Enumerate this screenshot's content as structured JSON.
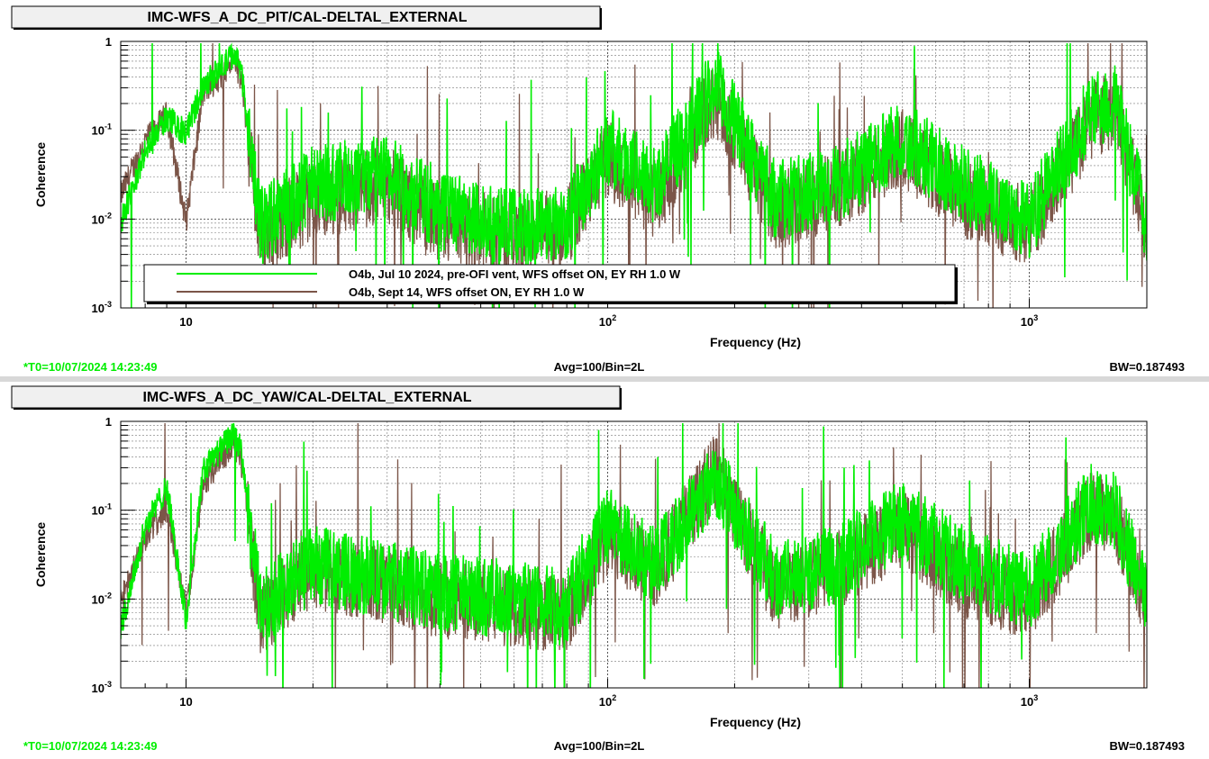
{
  "colors": {
    "series_1": "#00ee00",
    "series_2": "#7b5548",
    "t0_text": "#00ee00",
    "separator": "#d8d8d8"
  },
  "panels": [
    {
      "title": "IMC-WFS_A_DC_PIT/CAL-DELTAL_EXTERNAL",
      "t0": "*T0=10/07/2024 14:23:49",
      "avg": "Avg=100/Bin=2L",
      "bw": "BW=0.187493",
      "show_legend": true
    },
    {
      "title": "IMC-WFS_A_DC_YAW/CAL-DELTAL_EXTERNAL",
      "t0": "*T0=10/07/2024 14:23:49",
      "avg": "Avg=100/Bin=2L",
      "bw": "BW=0.187493",
      "show_legend": false
    }
  ],
  "legend": [
    {
      "label": "O4b, Jul 10 2024, pre-OFI vent, WFS offset ON, EY RH 1.0 W",
      "color": "#00ee00"
    },
    {
      "label": "O4b, Sept 14, WFS offset ON, EY RH 1.0 W",
      "color": "#7b5548"
    }
  ],
  "chart_data": [
    {
      "type": "line",
      "title": "IMC-WFS_A_DC_PIT/CAL-DELTAL_EXTERNAL",
      "xlabel": "Frequency (Hz)",
      "ylabel": "Coherence",
      "xscale": "log",
      "yscale": "log",
      "xlim": [
        7,
        1900
      ],
      "ylim": [
        0.001,
        1
      ],
      "x_ticklabels": [
        "10",
        "10^2",
        "10^3"
      ],
      "y_ticklabels": [
        "10^-3",
        "10^-2",
        "10^-1",
        "1"
      ],
      "grid": true,
      "legend_position": "bottom-left",
      "series": [
        {
          "name": "O4b, Jul 10 2024, pre-OFI vent, WFS offset ON, EY RH 1.0 W",
          "x": [
            7,
            8,
            9,
            10,
            11,
            12,
            13,
            13.5,
            15,
            20,
            30,
            40,
            60,
            80,
            100,
            130,
            180,
            250,
            350,
            500,
            700,
            1000,
            1400,
            1600,
            1900
          ],
          "y": [
            0.01,
            0.06,
            0.15,
            0.1,
            0.35,
            0.5,
            0.8,
            0.5,
            0.01,
            0.03,
            0.04,
            0.015,
            0.01,
            0.012,
            0.08,
            0.03,
            0.4,
            0.02,
            0.03,
            0.1,
            0.03,
            0.012,
            0.2,
            0.25,
            0.011
          ]
        },
        {
          "name": "O4b, Sept 14, WFS offset ON, EY RH 1.0 W",
          "x": [
            7,
            8,
            9,
            10,
            11,
            12,
            13,
            13.5,
            15,
            20,
            30,
            40,
            60,
            80,
            100,
            130,
            180,
            250,
            350,
            500,
            700,
            1000,
            1400,
            1600,
            1900
          ],
          "y": [
            0.02,
            0.08,
            0.16,
            0.01,
            0.3,
            0.4,
            0.7,
            0.4,
            0.008,
            0.02,
            0.03,
            0.01,
            0.008,
            0.01,
            0.06,
            0.02,
            0.3,
            0.015,
            0.025,
            0.08,
            0.02,
            0.01,
            0.15,
            0.22,
            0.009
          ]
        }
      ]
    },
    {
      "type": "line",
      "title": "IMC-WFS_A_DC_YAW/CAL-DELTAL_EXTERNAL",
      "xlabel": "Frequency (Hz)",
      "ylabel": "Coherence",
      "xscale": "log",
      "yscale": "log",
      "xlim": [
        7,
        1900
      ],
      "ylim": [
        0.001,
        1
      ],
      "x_ticklabels": [
        "10",
        "10^2",
        "10^3"
      ],
      "y_ticklabels": [
        "10^-3",
        "10^-2",
        "10^-1",
        "1"
      ],
      "grid": true,
      "series": [
        {
          "name": "O4b, Jul 10 2024, pre-OFI vent, WFS offset ON, EY RH 1.0 W",
          "x": [
            7,
            8,
            9,
            10,
            11,
            12,
            13,
            13.5,
            15,
            20,
            30,
            40,
            60,
            80,
            100,
            130,
            180,
            250,
            350,
            500,
            700,
            1000,
            1400,
            1600,
            1900
          ],
          "y": [
            0.005,
            0.07,
            0.2,
            0.006,
            0.3,
            0.5,
            0.8,
            0.5,
            0.01,
            0.03,
            0.02,
            0.015,
            0.012,
            0.01,
            0.08,
            0.03,
            0.3,
            0.02,
            0.03,
            0.1,
            0.03,
            0.015,
            0.15,
            0.12,
            0.012
          ]
        },
        {
          "name": "O4b, Sept 14, WFS offset ON, EY RH 1.0 W",
          "x": [
            7,
            8,
            9,
            10,
            11,
            12,
            13,
            13.5,
            15,
            20,
            30,
            40,
            60,
            80,
            100,
            130,
            180,
            250,
            350,
            500,
            700,
            1000,
            1400,
            1600,
            1900
          ],
          "y": [
            0.01,
            0.05,
            0.12,
            0.008,
            0.2,
            0.4,
            0.6,
            0.4,
            0.008,
            0.025,
            0.018,
            0.012,
            0.01,
            0.008,
            0.06,
            0.025,
            0.35,
            0.015,
            0.025,
            0.08,
            0.02,
            0.012,
            0.12,
            0.1,
            0.01
          ]
        }
      ]
    }
  ]
}
